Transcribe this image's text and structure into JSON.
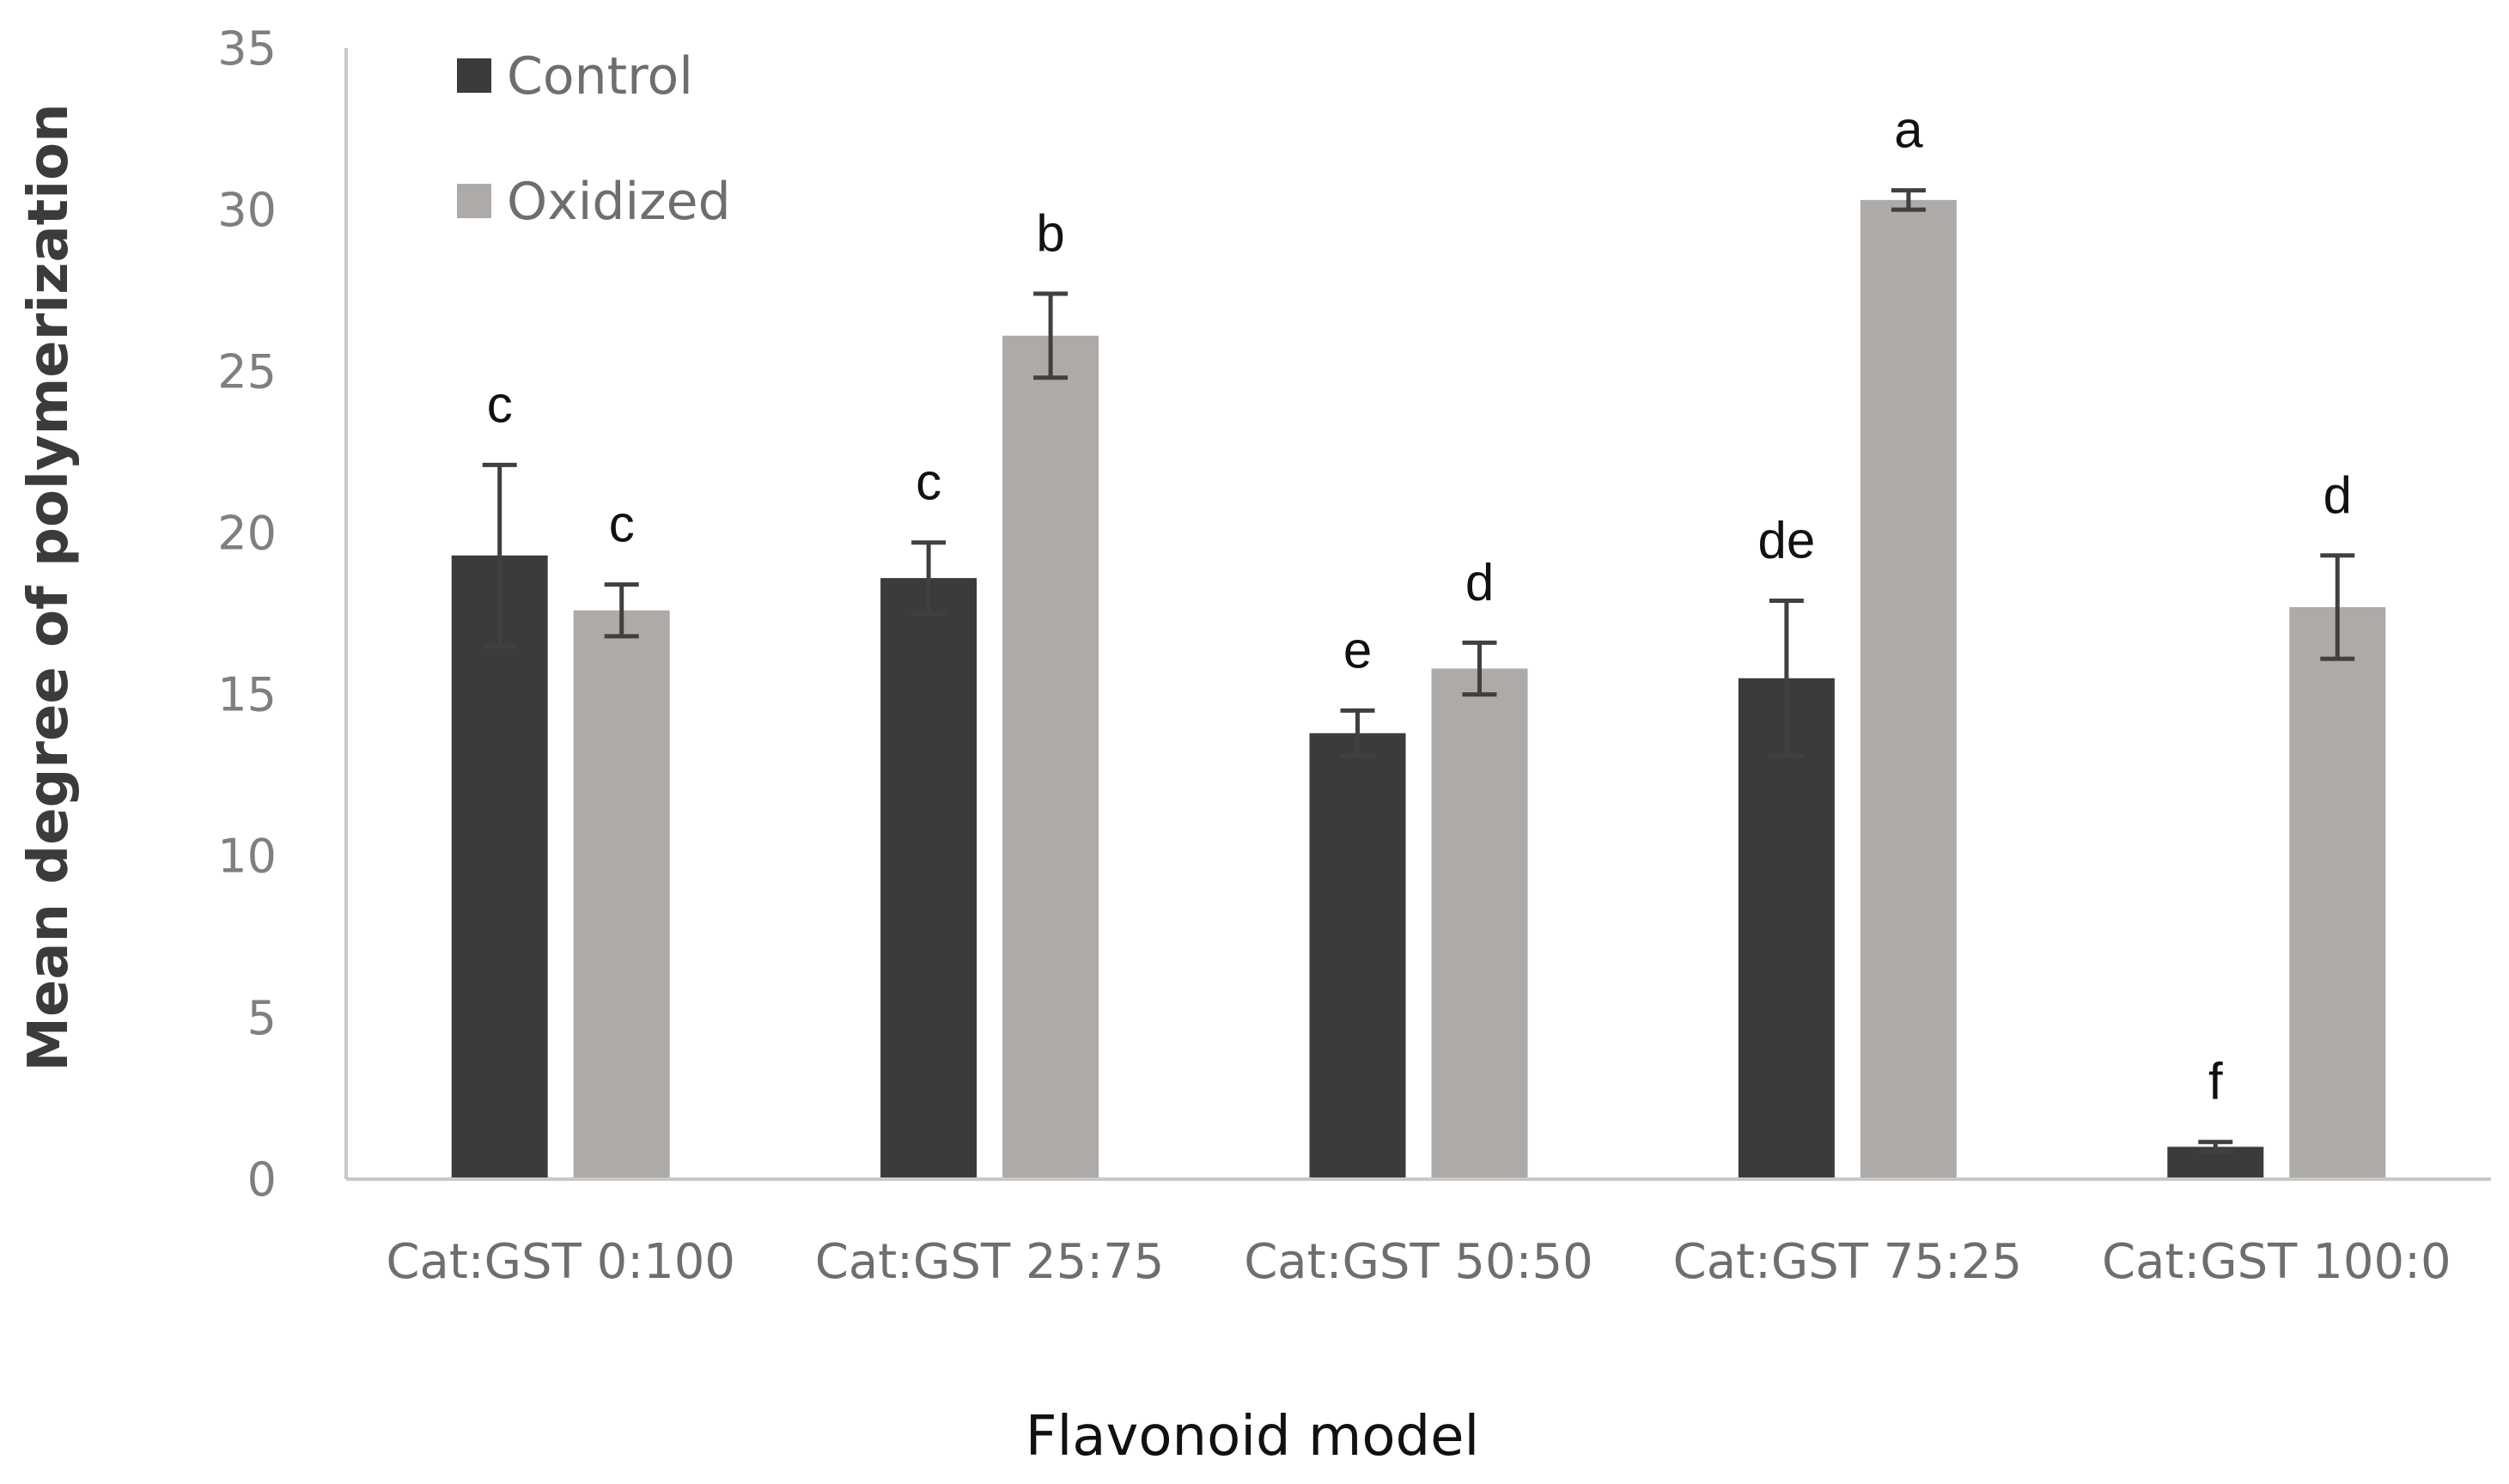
{
  "chart_data": {
    "type": "bar",
    "title": "",
    "xlabel": "Flavonoid model",
    "ylabel": "Mean degree of polymerization",
    "ylim": [
      0,
      35
    ],
    "yticks": [
      "0",
      "5",
      "10",
      "15",
      "20",
      "25",
      "30",
      "35"
    ],
    "grid": false,
    "legend_position": "top-left",
    "categories": [
      "Cat:GST 0:100",
      "Cat:GST 25:75",
      "Cat:GST 50:50",
      "Cat:GST 75:25",
      "Cat:GST 100:0"
    ],
    "series": [
      {
        "name": "Control",
        "color": "#3b3b3b",
        "values": [
          19.3,
          18.6,
          13.8,
          15.5,
          1.0
        ],
        "errors": [
          2.8,
          1.1,
          0.7,
          2.4,
          0.15
        ],
        "labels": [
          "c",
          "c",
          "e",
          "de",
          "f"
        ]
      },
      {
        "name": "Oxidized",
        "color": "#aeaaa8",
        "values": [
          17.6,
          26.1,
          15.8,
          30.3,
          17.7
        ],
        "errors": [
          0.8,
          1.3,
          0.8,
          0.3,
          1.6
        ],
        "labels": [
          "c",
          "b",
          "d",
          "a",
          "d"
        ]
      }
    ],
    "error_bar_color": "#404040",
    "axis_color": "#c8c8c8"
  }
}
